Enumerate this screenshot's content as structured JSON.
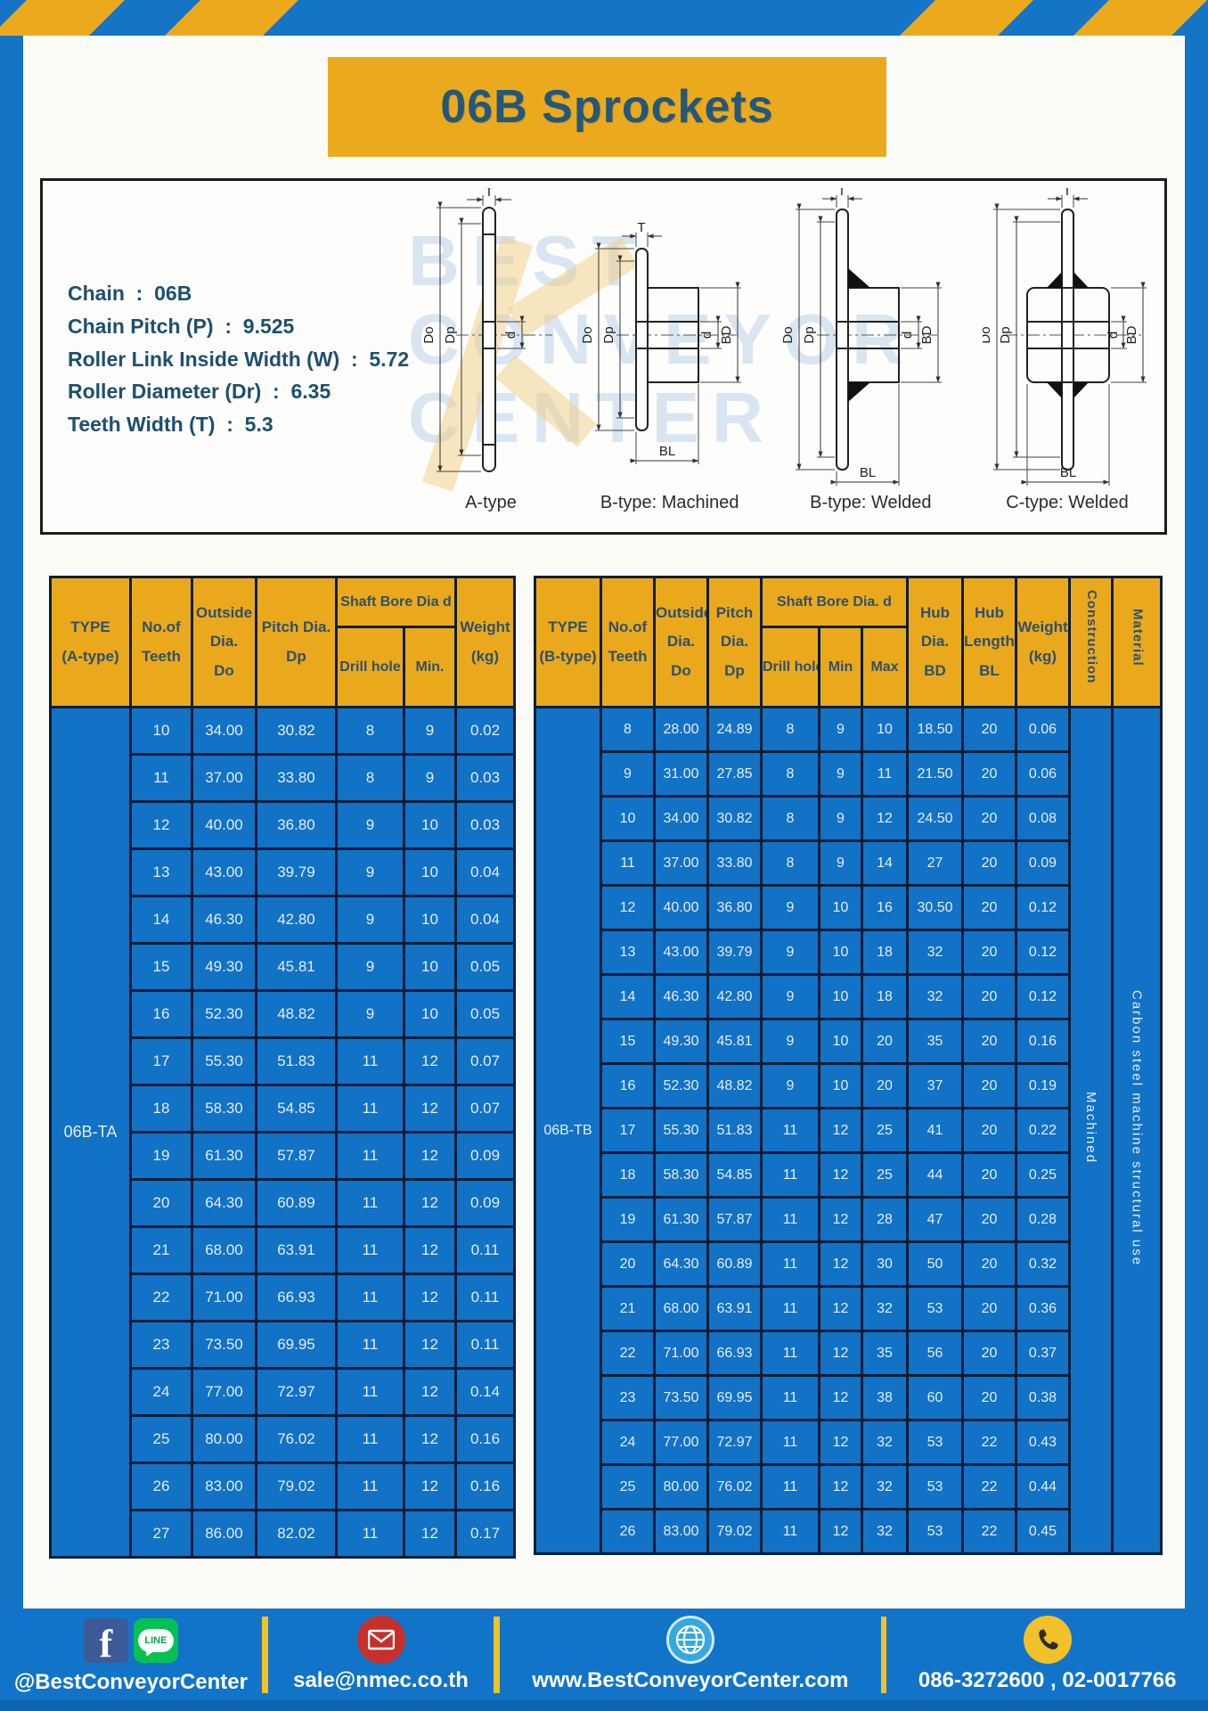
{
  "title": "06B Sprockets",
  "colors": {
    "frame_blue": "#1474C6",
    "accent_yellow": "#EBAA1E",
    "table_cell_blue": "#1272C6",
    "table_border": "#0B1E38",
    "title_text": "#23587C"
  },
  "specs": {
    "items": [
      {
        "label": "Chain",
        "value": "06B"
      },
      {
        "label": "Chain Pitch (P)",
        "value": "9.525"
      },
      {
        "label": "Roller Link Inside Width (W)",
        "value": "5.72"
      },
      {
        "label": "Roller Diameter (Dr)",
        "value": "6.35"
      },
      {
        "label": "Teeth Width (T)",
        "value": "5.3"
      }
    ]
  },
  "diagrams": {
    "watermark_lines": {
      "l1": "BEST",
      "l2": "CONVEYOR",
      "l3": "CENTER"
    },
    "dims": {
      "T": "T",
      "Do": "Do",
      "Dp": "Dp",
      "d": "d",
      "BD": "BD",
      "BL": "BL"
    },
    "items": [
      {
        "label": "A-type"
      },
      {
        "label": "B-type: Machined"
      },
      {
        "label": "B-type: Welded"
      },
      {
        "label": "C-type: Welded"
      }
    ]
  },
  "table_a": {
    "type_label": "06B-TA",
    "header": {
      "type": "TYPE\n(A-type)",
      "teeth": "No.of\nTeeth",
      "outside": "Outside\nDia.\nDo",
      "pitch": "Pitch Dia.\nDp",
      "shaft_bore": "Shaft Bore Dia d",
      "drill": "Drill hole",
      "min": "Min.",
      "weight": "Weight\n(kg)"
    },
    "rows": [
      [
        "10",
        "34.00",
        "30.82",
        "8",
        "9",
        "0.02"
      ],
      [
        "11",
        "37.00",
        "33.80",
        "8",
        "9",
        "0.03"
      ],
      [
        "12",
        "40.00",
        "36.80",
        "9",
        "10",
        "0.03"
      ],
      [
        "13",
        "43.00",
        "39.79",
        "9",
        "10",
        "0.04"
      ],
      [
        "14",
        "46.30",
        "42.80",
        "9",
        "10",
        "0.04"
      ],
      [
        "15",
        "49.30",
        "45.81",
        "9",
        "10",
        "0.05"
      ],
      [
        "16",
        "52.30",
        "48.82",
        "9",
        "10",
        "0.05"
      ],
      [
        "17",
        "55.30",
        "51.83",
        "11",
        "12",
        "0.07"
      ],
      [
        "18",
        "58.30",
        "54.85",
        "11",
        "12",
        "0.07"
      ],
      [
        "19",
        "61.30",
        "57.87",
        "11",
        "12",
        "0.09"
      ],
      [
        "20",
        "64.30",
        "60.89",
        "11",
        "12",
        "0.09"
      ],
      [
        "21",
        "68.00",
        "63.91",
        "11",
        "12",
        "0.11"
      ],
      [
        "22",
        "71.00",
        "66.93",
        "11",
        "12",
        "0.11"
      ],
      [
        "23",
        "73.50",
        "69.95",
        "11",
        "12",
        "0.11"
      ],
      [
        "24",
        "77.00",
        "72.97",
        "11",
        "12",
        "0.14"
      ],
      [
        "25",
        "80.00",
        "76.02",
        "11",
        "12",
        "0.16"
      ],
      [
        "26",
        "83.00",
        "79.02",
        "11",
        "12",
        "0.16"
      ],
      [
        "27",
        "86.00",
        "82.02",
        "11",
        "12",
        "0.17"
      ]
    ]
  },
  "table_b": {
    "type_label": "06B-TB",
    "header": {
      "type": "TYPE\n(B-type)",
      "teeth": "No.of\nTeeth",
      "outside": "Outside\nDia.\nDo",
      "pitch": "Pitch\nDia.\nDp",
      "shaft_bore": "Shaft Bore Dia. d",
      "drill": "Drill hole",
      "min": "Min",
      "max": "Max",
      "hub_dia": "Hub\nDia.\nBD",
      "hub_len": "Hub\nLength\nBL",
      "weight": "Weight\n(kg)",
      "construction": "Construction",
      "material": "Material"
    },
    "construction_value": "Machined",
    "material_value": "Carbon steel machine structural use",
    "rows": [
      [
        "8",
        "28.00",
        "24.89",
        "8",
        "9",
        "10",
        "18.50",
        "20",
        "0.06"
      ],
      [
        "9",
        "31.00",
        "27.85",
        "8",
        "9",
        "11",
        "21.50",
        "20",
        "0.06"
      ],
      [
        "10",
        "34.00",
        "30.82",
        "8",
        "9",
        "12",
        "24.50",
        "20",
        "0.08"
      ],
      [
        "11",
        "37.00",
        "33.80",
        "8",
        "9",
        "14",
        "27",
        "20",
        "0.09"
      ],
      [
        "12",
        "40.00",
        "36.80",
        "9",
        "10",
        "16",
        "30.50",
        "20",
        "0.12"
      ],
      [
        "13",
        "43.00",
        "39.79",
        "9",
        "10",
        "18",
        "32",
        "20",
        "0.12"
      ],
      [
        "14",
        "46.30",
        "42.80",
        "9",
        "10",
        "18",
        "32",
        "20",
        "0.12"
      ],
      [
        "15",
        "49.30",
        "45.81",
        "9",
        "10",
        "20",
        "35",
        "20",
        "0.16"
      ],
      [
        "16",
        "52.30",
        "48.82",
        "9",
        "10",
        "20",
        "37",
        "20",
        "0.19"
      ],
      [
        "17",
        "55.30",
        "51.83",
        "11",
        "12",
        "25",
        "41",
        "20",
        "0.22"
      ],
      [
        "18",
        "58.30",
        "54.85",
        "11",
        "12",
        "25",
        "44",
        "20",
        "0.25"
      ],
      [
        "19",
        "61.30",
        "57.87",
        "11",
        "12",
        "28",
        "47",
        "20",
        "0.28"
      ],
      [
        "20",
        "64.30",
        "60.89",
        "11",
        "12",
        "30",
        "50",
        "20",
        "0.32"
      ],
      [
        "21",
        "68.00",
        "63.91",
        "11",
        "12",
        "32",
        "53",
        "20",
        "0.36"
      ],
      [
        "22",
        "71.00",
        "66.93",
        "11",
        "12",
        "35",
        "56",
        "20",
        "0.37"
      ],
      [
        "23",
        "73.50",
        "69.95",
        "11",
        "12",
        "38",
        "60",
        "20",
        "0.38"
      ],
      [
        "24",
        "77.00",
        "72.97",
        "11",
        "12",
        "32",
        "53",
        "22",
        "0.43"
      ],
      [
        "25",
        "80.00",
        "76.02",
        "11",
        "12",
        "32",
        "53",
        "22",
        "0.44"
      ],
      [
        "26",
        "83.00",
        "79.02",
        "11",
        "12",
        "32",
        "53",
        "22",
        "0.45"
      ]
    ]
  },
  "footer": {
    "social_handle": "@BestConveyorCenter",
    "line_label": "LINE",
    "email": "sale@nmec.co.th",
    "website": "www.BestConveyorCenter.com",
    "phones": "086-3272600 , 02-0017766"
  }
}
